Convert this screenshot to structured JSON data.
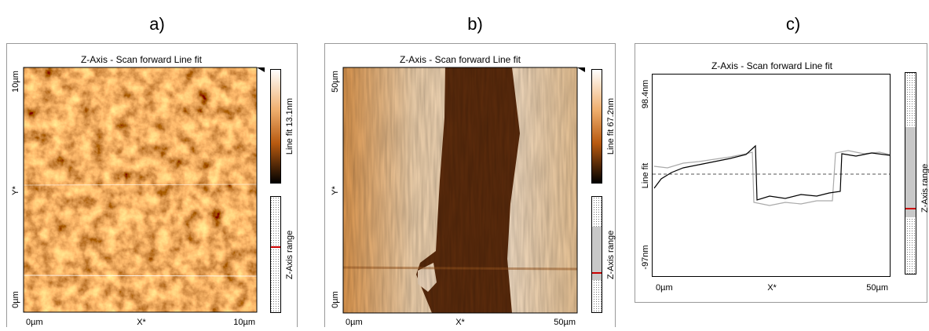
{
  "panels": [
    {
      "label": "a)",
      "title": "Z-Axis - Scan forward   Line fit",
      "y_axis": {
        "top": "10µm",
        "name": "Y*",
        "bottom": "0µm"
      },
      "x_axis": {
        "left": "0µm",
        "name": "X*",
        "right": "10µm"
      },
      "colorbar": "Line fit 13.1nm",
      "range_bar": "Z-Axis range"
    },
    {
      "label": "b)",
      "title": "Z-Axis - Scan forward   Line fit",
      "y_axis": {
        "top": "50µm",
        "name": "Y*",
        "bottom": "0µm"
      },
      "x_axis": {
        "left": "0µm",
        "name": "X*",
        "right": "50µm"
      },
      "colorbar": "Line fit 67.2nm",
      "range_bar": "Z-Axis range"
    },
    {
      "label": "c)",
      "title": "Z-Axis - Scan forward   Line fit",
      "y_axis": {
        "top": "98.4nm",
        "name": "Line fit",
        "bottom": "-97nm"
      },
      "x_axis": {
        "left": "0µm",
        "name": "X*",
        "right": "50µm"
      },
      "range_bar": "Z-Axis range"
    }
  ]
}
